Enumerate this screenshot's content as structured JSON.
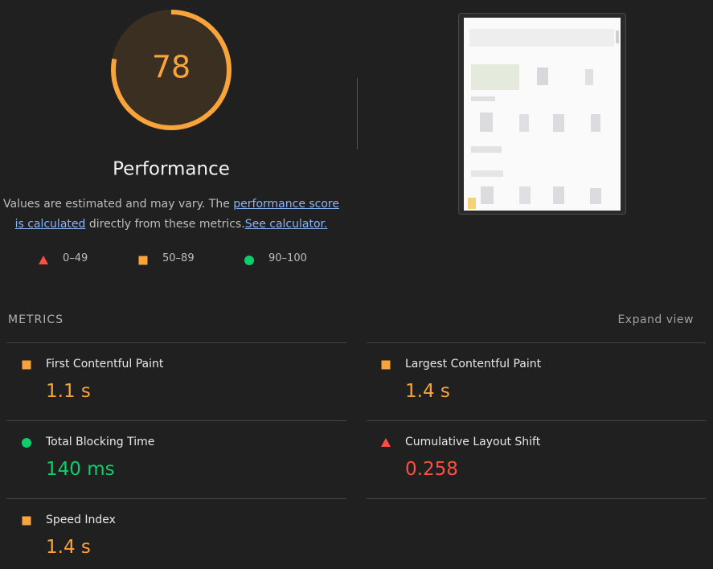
{
  "gauge": {
    "score": 78,
    "max": 100,
    "title": "Performance"
  },
  "description": {
    "text1": "Values are estimated and may vary. The ",
    "link1": "performance score is calculated",
    "text2": " directly from these metrics.",
    "link2": "See calculator."
  },
  "legend": [
    {
      "label": "0–49",
      "rating": "fail"
    },
    {
      "label": "50–89",
      "rating": "average"
    },
    {
      "label": "90–100",
      "rating": "pass"
    }
  ],
  "metrics_header": {
    "title": "METRICS",
    "action": "Expand view"
  },
  "metrics": [
    {
      "name": "First Contentful Paint",
      "value": "1.1 s",
      "rating": "average"
    },
    {
      "name": "Largest Contentful Paint",
      "value": "1.4 s",
      "rating": "average"
    },
    {
      "name": "Total Blocking Time",
      "value": "140 ms",
      "rating": "pass"
    },
    {
      "name": "Cumulative Layout Shift",
      "value": "0.258",
      "rating": "fail"
    },
    {
      "name": "Speed Index",
      "value": "1.4 s",
      "rating": "average"
    }
  ]
}
